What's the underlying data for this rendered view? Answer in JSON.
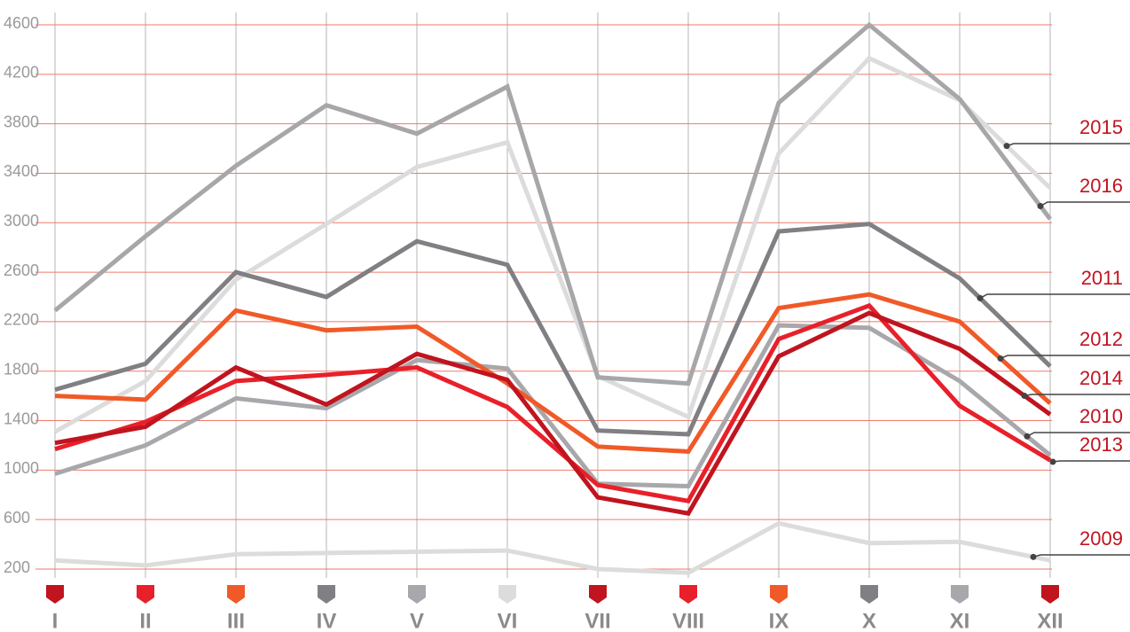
{
  "chart_data": {
    "type": "line",
    "categories": [
      "I",
      "II",
      "III",
      "IV",
      "V",
      "VI",
      "VII",
      "VIII",
      "IX",
      "X",
      "XI",
      "XII"
    ],
    "ylim": [
      200,
      4600
    ],
    "yticks": [
      200,
      600,
      1000,
      1400,
      1800,
      2200,
      2600,
      3000,
      3400,
      3800,
      4200,
      4600
    ],
    "grid": true,
    "series": [
      {
        "name": "2009",
        "color": "#dcdcdc",
        "values": [
          270,
          230,
          320,
          330,
          340,
          350,
          200,
          170,
          570,
          410,
          420,
          270
        ]
      },
      {
        "name": "2015",
        "color": "#dcdcdc",
        "values": [
          1310,
          1720,
          2540,
          2990,
          3450,
          3650,
          1760,
          1430,
          3560,
          4330,
          3990,
          3280
        ]
      },
      {
        "name": "2016",
        "color": "#a7a7aa",
        "values": [
          2290,
          2890,
          3460,
          3950,
          3720,
          4100,
          1750,
          1700,
          3970,
          4600,
          4000,
          3030
        ]
      },
      {
        "name": "2010",
        "color": "#a8a8ac",
        "values": [
          970,
          1200,
          1580,
          1500,
          1890,
          1820,
          890,
          870,
          2170,
          2150,
          1720,
          1120
        ]
      },
      {
        "name": "2011",
        "color": "#808084",
        "values": [
          1650,
          1860,
          2600,
          2400,
          2850,
          2660,
          1320,
          1290,
          2930,
          2990,
          2550,
          1840
        ]
      },
      {
        "name": "2012",
        "color": "#f05a28",
        "values": [
          1600,
          1570,
          2290,
          2130,
          2160,
          1700,
          1190,
          1150,
          2310,
          2420,
          2200,
          1540
        ]
      },
      {
        "name": "2013",
        "color": "#e8202a",
        "values": [
          1170,
          1390,
          1720,
          1770,
          1830,
          1510,
          880,
          750,
          2060,
          2330,
          1520,
          1080
        ]
      },
      {
        "name": "2014",
        "color": "#c0141f",
        "values": [
          1220,
          1350,
          1830,
          1530,
          1940,
          1730,
          780,
          650,
          1920,
          2270,
          1980,
          1450
        ]
      }
    ]
  }
}
